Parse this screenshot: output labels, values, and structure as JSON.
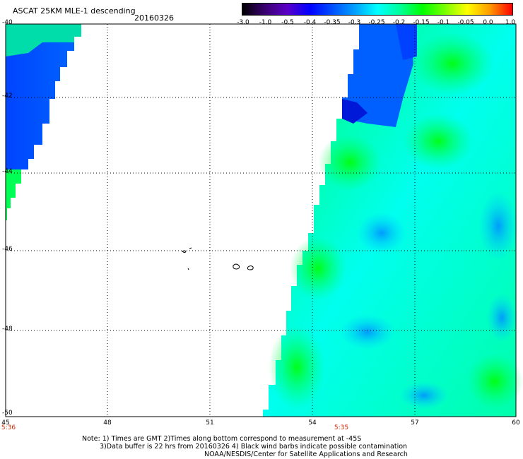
{
  "header": {
    "title": "ASCAT 25KM MLE-1 descending",
    "date": "20160326"
  },
  "colorbar": {
    "ticks": [
      "-3.0",
      "-1.0",
      "-0.5",
      "-0.4",
      "-0.35",
      "-0.3",
      "-0.25",
      "-0.2",
      "-0.15",
      "-0.1",
      "-0.05",
      "0.0",
      "1.0"
    ],
    "colors": [
      "#000000",
      "#3a0070",
      "#5a00c8",
      "#0000ff",
      "#0050ff",
      "#00a0ff",
      "#00ffff",
      "#00ff9a",
      "#00ff00",
      "#7aff00",
      "#ffff00",
      "#ff9a00",
      "#ff0000"
    ]
  },
  "map": {
    "lat_labels": [
      "-40",
      "-42",
      "-44",
      "-46",
      "-48",
      "-50"
    ],
    "lon_labels": [
      "45",
      "48",
      "51",
      "54",
      "57",
      "60"
    ],
    "time_labels": [
      "5:36",
      "5:35"
    ],
    "fill_colors": {
      "blue": "#0055ff",
      "dark_blue": "#0022dd",
      "cyan": "#00ffff",
      "green": "#00ff55",
      "bright_green": "#00ff00"
    }
  },
  "footer": {
    "note_line1": "Note: 1) Times are GMT 2)Times along bottom correspond to measurement at -45S",
    "note_line2": "3)Data buffer is 22 hrs from 20160326 4) Black wind barbs indicate possible contamination",
    "note_line3": "NOAA/NESDIS/Center for Satellite Applications and Research"
  }
}
